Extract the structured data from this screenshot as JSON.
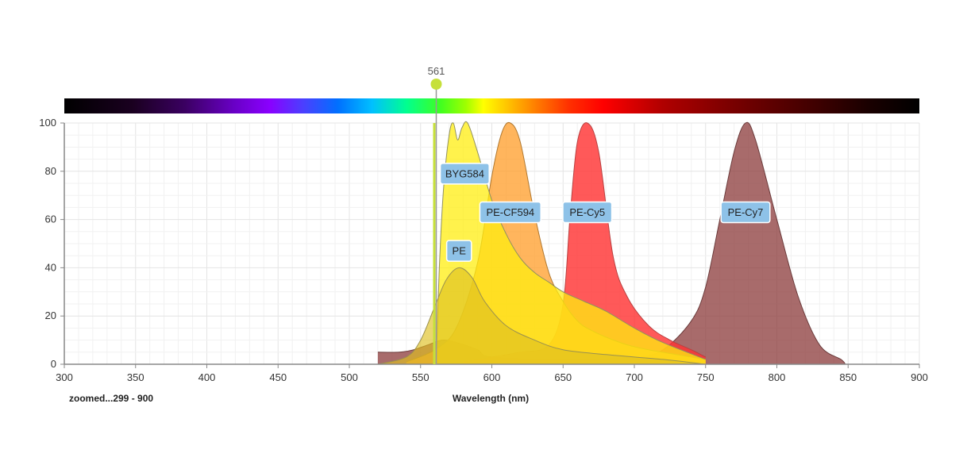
{
  "chart_data": {
    "type": "area",
    "xlabel": "Wavelength (nm)",
    "ylabel": "",
    "xlim": [
      300,
      900
    ],
    "ylim": [
      0,
      100
    ],
    "x_ticks": [
      300,
      350,
      400,
      450,
      500,
      550,
      600,
      650,
      700,
      750,
      800,
      850,
      900
    ],
    "y_ticks": [
      0,
      20,
      40,
      60,
      80,
      100
    ],
    "grid": true,
    "zoom_label": "zoomed...299 - 900",
    "laser": {
      "wavelength": 561,
      "label": "561",
      "color": "#c6e03a"
    },
    "spectrum_bar": {
      "range": [
        300,
        900
      ]
    },
    "series": [
      {
        "name": "PE-Cy7",
        "fill": "#8b3a3a",
        "stroke": "#6b3b3b",
        "opacity": 0.75,
        "x": [
          520,
          535,
          545,
          555,
          565,
          575,
          590,
          600,
          650,
          700,
          720,
          740,
          750,
          760,
          770,
          778,
          785,
          800,
          815,
          830,
          845,
          848
        ],
        "values": [
          5,
          5,
          6,
          8,
          10,
          9,
          6,
          3,
          2,
          3,
          6,
          18,
          32,
          60,
          88,
          100,
          93,
          60,
          28,
          8,
          2,
          0
        ]
      },
      {
        "name": "PE-Cy5",
        "fill": "#ff3535",
        "stroke": "#b84040",
        "opacity": 0.82,
        "x": [
          580,
          600,
          620,
          640,
          650,
          655,
          660,
          667,
          675,
          685,
          695,
          710,
          725,
          740,
          750
        ],
        "values": [
          1,
          3,
          5,
          8,
          25,
          62,
          92,
          100,
          88,
          45,
          28,
          16,
          10,
          6,
          3
        ]
      },
      {
        "name": "PE-CF594",
        "fill": "#ffa030",
        "stroke": "#b07830",
        "opacity": 0.78,
        "x": [
          540,
          560,
          575,
          590,
          600,
          607,
          613,
          620,
          630,
          640,
          650,
          660,
          670,
          690,
          710,
          750
        ],
        "values": [
          1,
          6,
          15,
          42,
          78,
          96,
          100,
          92,
          62,
          38,
          26,
          18,
          14,
          9,
          6,
          2
        ]
      },
      {
        "name": "BYG584",
        "fill": "#ffee10",
        "stroke": "#909060",
        "opacity": 0.75,
        "x": [
          561,
          563,
          566,
          570,
          573,
          576,
          579,
          583,
          590,
          600,
          610,
          620,
          630,
          640,
          650,
          665,
          680,
          700,
          720,
          750
        ],
        "values": [
          0,
          38,
          72,
          95,
          100,
          93,
          98,
          100,
          88,
          68,
          54,
          44,
          38,
          34,
          30,
          26,
          22,
          15,
          9,
          2
        ]
      },
      {
        "name": "PE",
        "fill": "#dfc020",
        "stroke": "#9a9050",
        "opacity": 0.65,
        "x": [
          520,
          540,
          550,
          560,
          568,
          577,
          586,
          595,
          610,
          630,
          650,
          680,
          720,
          750
        ],
        "values": [
          0,
          3,
          10,
          24,
          35,
          40,
          36,
          26,
          16,
          10,
          6,
          4,
          2,
          0
        ]
      }
    ],
    "tags": [
      {
        "series": "BYG584",
        "text": "BYG584",
        "x": 581,
        "y": 79
      },
      {
        "series": "PE-CF594",
        "text": "PE-CF594",
        "x": 613,
        "y": 63
      },
      {
        "series": "PE-Cy5",
        "text": "PE-Cy5",
        "x": 667,
        "y": 63
      },
      {
        "series": "PE-Cy7",
        "text": "PE-Cy7",
        "x": 778,
        "y": 63
      },
      {
        "series": "PE",
        "text": "PE",
        "x": 577,
        "y": 47
      }
    ]
  }
}
